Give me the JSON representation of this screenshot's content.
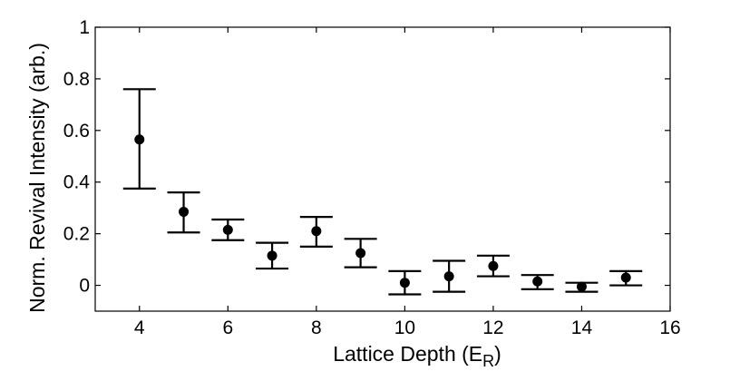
{
  "chart_data": {
    "type": "scatter",
    "xlabel": "Lattice Depth (E",
    "xlabel_sub": "R",
    "xlabel_close": ")",
    "ylabel": "Norm. Revival Intensity (arb.)",
    "xlim": [
      3,
      16
    ],
    "ylim": [
      -0.1,
      1
    ],
    "xticks": [
      "4",
      "6",
      "8",
      "10",
      "12",
      "14",
      "16"
    ],
    "yticks": [
      "0",
      "0.2",
      "0.4",
      "0.6",
      "0.8",
      "1"
    ],
    "grid": false,
    "series": [
      {
        "x": [
          4,
          5,
          6,
          7,
          8,
          9,
          10,
          11,
          12,
          13,
          14,
          15
        ],
        "y": [
          0.565,
          0.285,
          0.215,
          0.115,
          0.21,
          0.125,
          0.01,
          0.035,
          0.075,
          0.015,
          -0.005,
          0.03
        ],
        "err_low": [
          0.375,
          0.205,
          0.175,
          0.065,
          0.15,
          0.07,
          -0.035,
          -0.025,
          0.035,
          -0.015,
          -0.025,
          0.0
        ],
        "err_high": [
          0.76,
          0.36,
          0.255,
          0.165,
          0.265,
          0.18,
          0.055,
          0.095,
          0.115,
          0.04,
          0.01,
          0.055
        ]
      }
    ],
    "colors": {
      "marker": "#000000",
      "axis": "#000000"
    }
  }
}
